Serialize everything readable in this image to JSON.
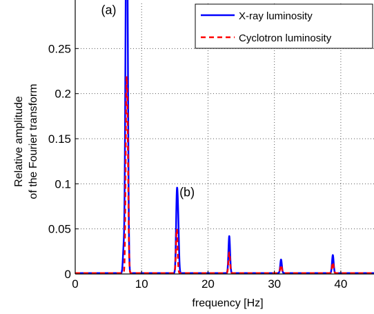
{
  "chart_data": {
    "type": "line",
    "xlabel": "frequency [Hz]",
    "ylabel_lines": [
      "Relative amplitude",
      "of the Fourier transform"
    ],
    "xlim": [
      0,
      45
    ],
    "ylim": [
      0,
      0.3
    ],
    "xticks": [
      0,
      10,
      20,
      30,
      40
    ],
    "yticks": [
      0,
      0.05,
      0.1,
      0.15,
      0.2,
      0.25
    ],
    "ytick_labels": [
      "0",
      "0.05",
      "0.1",
      "0.15",
      "0.2",
      "0.25"
    ],
    "grid": true,
    "legend_position": "top-right",
    "annotations": [
      {
        "text": "(a)",
        "x": 3.9,
        "y": 0.288
      },
      {
        "text": "(b)",
        "x": 15.7,
        "y": 0.086
      }
    ],
    "series": [
      {
        "name": "X-ray luminosity",
        "color": "#0000ff",
        "style": "solid",
        "baseline": 0.001,
        "peaks": [
          {
            "x": 7.3,
            "y": 0.028
          },
          {
            "x": 7.6,
            "y": 0.163
          },
          {
            "x": 7.75,
            "y": 0.28
          },
          {
            "x": 7.9,
            "y": 0.16
          },
          {
            "x": 15.3,
            "y": 0.079
          },
          {
            "x": 15.5,
            "y": 0.052
          },
          {
            "x": 23.2,
            "y": 0.042
          },
          {
            "x": 31.0,
            "y": 0.016
          },
          {
            "x": 38.8,
            "y": 0.021
          }
        ]
      },
      {
        "name": "Cyclotron luminosity",
        "color": "#ff0000",
        "style": "dashed",
        "baseline": 0.001,
        "peaks": [
          {
            "x": 7.7,
            "y": 0.18
          },
          {
            "x": 7.9,
            "y": 0.12
          },
          {
            "x": 15.3,
            "y": 0.05
          },
          {
            "x": 23.2,
            "y": 0.024
          },
          {
            "x": 31.0,
            "y": 0.01
          },
          {
            "x": 38.8,
            "y": 0.013
          }
        ]
      }
    ]
  }
}
